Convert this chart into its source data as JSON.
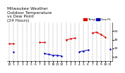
{
  "title": "Milwaukee Weather  Outdoor Temp  vs Dew Point  (24 Hours)",
  "title_parts": [
    "Milwaukee Weather",
    "Outdoor Temperature",
    "vs Dew Point",
    "(24 Hours)"
  ],
  "temp_color": "#dd0000",
  "dew_color": "#0000bb",
  "background": "#ffffff",
  "grid_color": "#999999",
  "hours": [
    0,
    1,
    2,
    3,
    4,
    5,
    6,
    7,
    8,
    9,
    10,
    11,
    12,
    13,
    14,
    15,
    16,
    17,
    18,
    19,
    20,
    21,
    22,
    23
  ],
  "tick_labels": [
    "12",
    "1",
    "2",
    "3",
    "4",
    "5",
    "6",
    "7",
    "8",
    "9",
    "10",
    "11",
    "12",
    "1",
    "2",
    "3",
    "4",
    "5",
    "6",
    "7",
    "8",
    "9",
    "10",
    "11"
  ],
  "temp_values": [
    36,
    36,
    null,
    null,
    null,
    null,
    null,
    37,
    37,
    null,
    null,
    null,
    null,
    40,
    41,
    42,
    null,
    null,
    null,
    48,
    49,
    46,
    43,
    null
  ],
  "dew_values": [
    null,
    26,
    null,
    null,
    null,
    null,
    null,
    null,
    24,
    23,
    22,
    22,
    21,
    null,
    null,
    null,
    26,
    27,
    28,
    null,
    null,
    null,
    null,
    29
  ],
  "ylim": [
    15,
    60
  ],
  "ytick_right": [
    20,
    30,
    40,
    50
  ],
  "legend_temp": "Temp",
  "legend_dew": "Dew Pt",
  "title_fontsize": 4.2,
  "tick_fontsize": 3.2,
  "marker_size": 1.8,
  "linewidth": 0.7
}
